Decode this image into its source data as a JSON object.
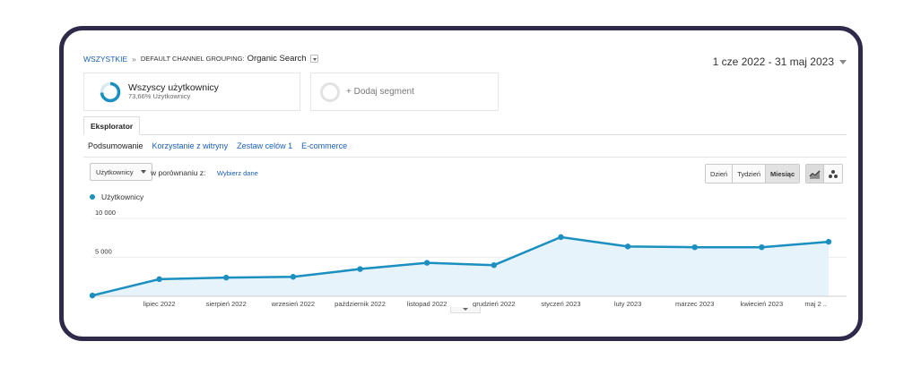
{
  "breadcrumb": {
    "all": "WSZYSTKIE",
    "separator": "»",
    "group_label": "DEFAULT CHANNEL GROUPING:",
    "group_value": "Organic Search"
  },
  "date_range": "1 cze 2022 - 31 maj 2023",
  "segments": [
    {
      "title": "Wszyscy użytkownicy",
      "subtitle": "73,66% Użytkownicy",
      "percent": 73.66
    }
  ],
  "add_segment": "+ Dodaj segment",
  "tab": "Eksplorator",
  "subtabs": [
    "Podsumowanie",
    "Korzystanie z witryny",
    "Zestaw celów 1",
    "E-commerce"
  ],
  "metric_select": "Użytkownicy",
  "compare_label": "w porównaniu z:",
  "compare_link": "Wybierz dane",
  "periods": {
    "day": "Dzień",
    "week": "Tydzień",
    "month": "Miesiąc"
  },
  "chart_type_icons": [
    "line-chart-icon",
    "motion-chart-icon"
  ],
  "colors": {
    "accent": "#1a8fc0",
    "fill": "#e6f3fa",
    "link": "#1a5fb4",
    "frame": "#2f2a4a"
  },
  "chart_data": {
    "type": "area",
    "legend": "Użytkownicy",
    "ylim": [
      0,
      10000
    ],
    "y_ticks": [
      {
        "value": 10000,
        "label": "10 000"
      },
      {
        "value": 5000,
        "label": "5 000"
      }
    ],
    "x_labels": [
      "lipiec 2022",
      "sierpień 2022",
      "wrzesień 2022",
      "październik 2022",
      "listopad 2022",
      "grudzień 2022",
      "styczeń 2023",
      "luty 2023",
      "marzec 2023",
      "kwiecień 2023",
      "maj 2 .."
    ],
    "series": [
      {
        "name": "Użytkownicy",
        "values": [
          100,
          2200,
          2400,
          2500,
          3500,
          4300,
          4000,
          7600,
          6400,
          6300,
          6300,
          7000
        ]
      }
    ]
  }
}
